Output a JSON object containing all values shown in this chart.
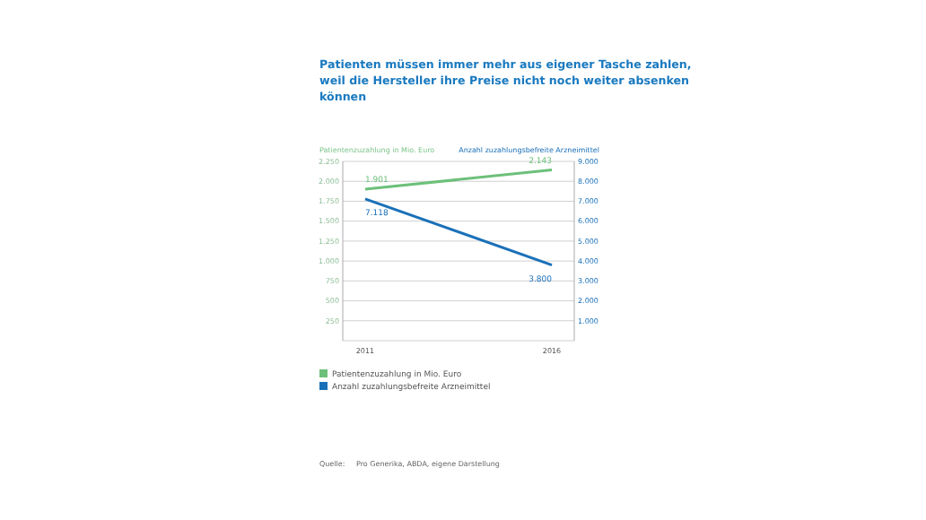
{
  "chart_data": {
    "type": "line",
    "title": "Patienten müssen immer mehr aus eigener Tasche zahlen, weil die Hersteller ihre Preise nicht noch weiter absenken können",
    "ylabel": "Patientenzuzahlung in Mio. Euro",
    "y2label": "Anzahl zuzahlungsbefreite Arzneimittel",
    "categories": [
      "2011",
      "2016"
    ],
    "series": [
      {
        "name": "Patientenzuzahlung in Mio. Euro",
        "color": "#6cc07a",
        "values": [
          1901,
          2143
        ],
        "value_labels": [
          "1.901",
          "2.143"
        ]
      },
      {
        "name": "Anzahl zuzahlungsbefreite Arzneimittel",
        "color": "#1a70b8",
        "values": [
          7118,
          3800
        ],
        "value_labels": [
          "7.118",
          "3.800"
        ],
        "axis": "y2"
      }
    ],
    "ylim": [
      0,
      2250
    ],
    "yticks": [
      {
        "value": 250,
        "label": "250"
      },
      {
        "value": 500,
        "label": "500"
      },
      {
        "value": 750,
        "label": "750"
      },
      {
        "value": 1000,
        "label": "1.000"
      },
      {
        "value": 1250,
        "label": "1.250"
      },
      {
        "value": 1500,
        "label": "1.500"
      },
      {
        "value": 1750,
        "label": "1.750"
      },
      {
        "value": 2000,
        "label": "2.000"
      },
      {
        "value": 2250,
        "label": "2.250"
      }
    ],
    "y2lim": [
      0,
      9000
    ],
    "y2ticks": [
      {
        "value": 1000,
        "label": "1.000"
      },
      {
        "value": 2000,
        "label": "2.000"
      },
      {
        "value": 3000,
        "label": "3.000"
      },
      {
        "value": 4000,
        "label": "4.000"
      },
      {
        "value": 5000,
        "label": "5.000"
      },
      {
        "value": 6000,
        "label": "6.000"
      },
      {
        "value": 7000,
        "label": "7.000"
      },
      {
        "value": 8000,
        "label": "8.000"
      },
      {
        "value": 9000,
        "label": "9.000"
      }
    ],
    "grid": "y",
    "legend": "bottom",
    "marker": "none",
    "line_style": "solid",
    "annotations": [
      "Quelle:     Pro Generika, ABDA, eigene Darstellung"
    ]
  }
}
